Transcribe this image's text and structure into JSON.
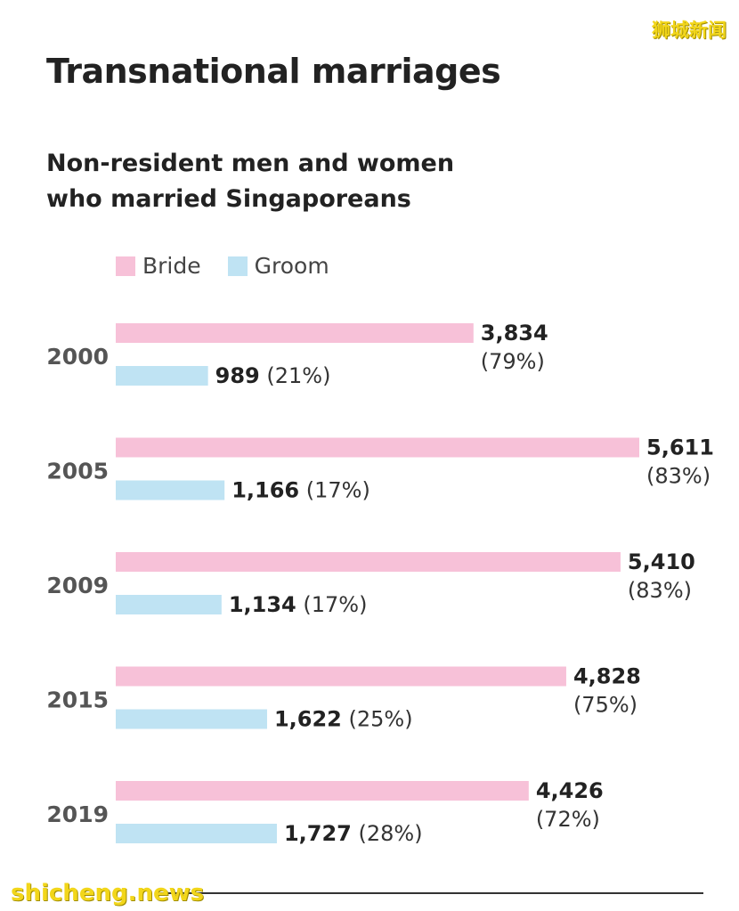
{
  "watermark_top": "狮城新闻",
  "watermark_bottom": "shicheng.news",
  "colors": {
    "bride": "#f7c1d8",
    "groom": "#bfe3f3",
    "text": "#222222",
    "year": "#555555"
  },
  "chart_data": {
    "type": "bar",
    "orientation": "horizontal",
    "title": "Transnational marriages",
    "subtitle": "Non-resident men and women who married Singaporeans",
    "legend": [
      "Bride",
      "Groom"
    ],
    "legend_position": "top-left",
    "grid": false,
    "categories": [
      "2000",
      "2005",
      "2009",
      "2015",
      "2019"
    ],
    "series": [
      {
        "name": "Bride",
        "values": [
          3834,
          5611,
          5410,
          4828,
          4426
        ],
        "percents": [
          "(79%)",
          "(83%)",
          "(83%)",
          "(75%)",
          "(72%)"
        ],
        "labels": [
          "3,834",
          "5,611",
          "5,410",
          "4,828",
          "4,426"
        ]
      },
      {
        "name": "Groom",
        "values": [
          989,
          1166,
          1134,
          1622,
          1727
        ],
        "percents": [
          "(21%)",
          "(17%)",
          "(17%)",
          "(25%)",
          "(28%)"
        ],
        "labels": [
          "989",
          "1,166",
          "1,134",
          "1,622",
          "1,727"
        ]
      }
    ],
    "xlim": [
      0,
      5611
    ]
  }
}
